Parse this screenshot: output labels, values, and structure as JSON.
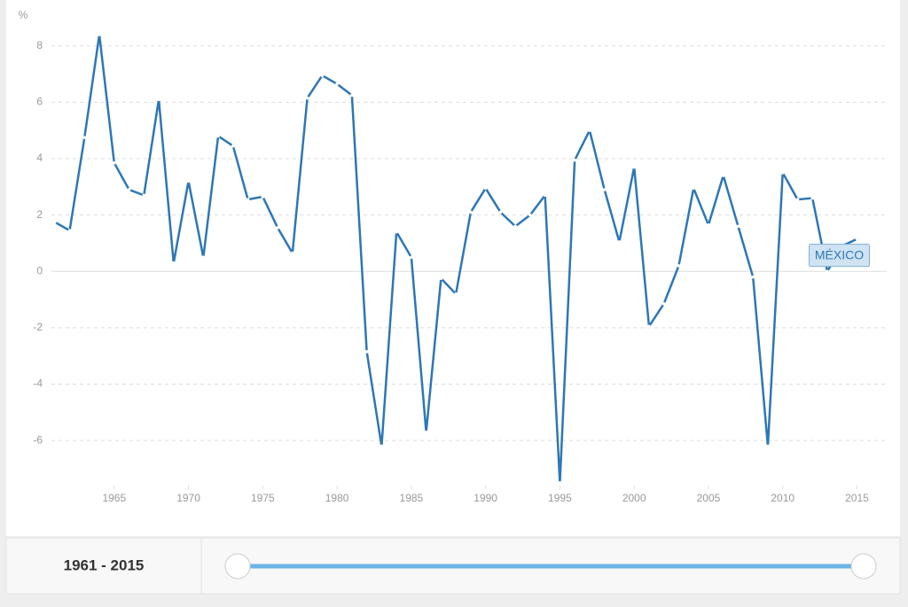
{
  "chart_data": {
    "type": "line",
    "y_label": "%",
    "x": [
      1961,
      1962,
      1963,
      1964,
      1965,
      1966,
      1967,
      1968,
      1969,
      1970,
      1971,
      1972,
      1973,
      1974,
      1975,
      1976,
      1977,
      1978,
      1979,
      1980,
      1981,
      1982,
      1983,
      1984,
      1985,
      1986,
      1987,
      1988,
      1989,
      1990,
      1991,
      1992,
      1993,
      1994,
      1995,
      1996,
      1997,
      1998,
      1999,
      2000,
      2001,
      2002,
      2003,
      2004,
      2005,
      2006,
      2007,
      2008,
      2009,
      2010,
      2011,
      2012,
      2013,
      2014,
      2015
    ],
    "series": [
      {
        "name": "MÉXICO",
        "color": "#2d77b5",
        "values": [
          1.75,
          1.45,
          4.75,
          8.4,
          3.85,
          2.9,
          2.7,
          6.1,
          0.3,
          3.2,
          0.5,
          4.8,
          4.45,
          2.55,
          2.65,
          1.55,
          0.65,
          6.15,
          6.95,
          6.65,
          6.25,
          -2.85,
          -6.2,
          1.4,
          0.5,
          -5.7,
          -0.25,
          -0.8,
          2.1,
          2.95,
          2.1,
          1.6,
          2.0,
          2.7,
          -7.5,
          3.95,
          5.0,
          2.9,
          1.05,
          3.7,
          -1.95,
          -1.15,
          0.2,
          2.95,
          1.65,
          3.4,
          1.6,
          -0.2,
          -6.2,
          3.5,
          2.55,
          2.6,
          0.0,
          0.9,
          1.15
        ]
      }
    ],
    "xlim": [
      1959.7,
      2017
    ],
    "xticks": [
      1965,
      1970,
      1975,
      1980,
      1985,
      1990,
      1995,
      2000,
      2005,
      2010,
      2015
    ],
    "ylim": [
      -7.6,
      9
    ],
    "yticks": [
      -6,
      -4,
      -2,
      0,
      2,
      4,
      6,
      8
    ],
    "grid": true
  },
  "slider": {
    "label": "1961 - 2015"
  }
}
